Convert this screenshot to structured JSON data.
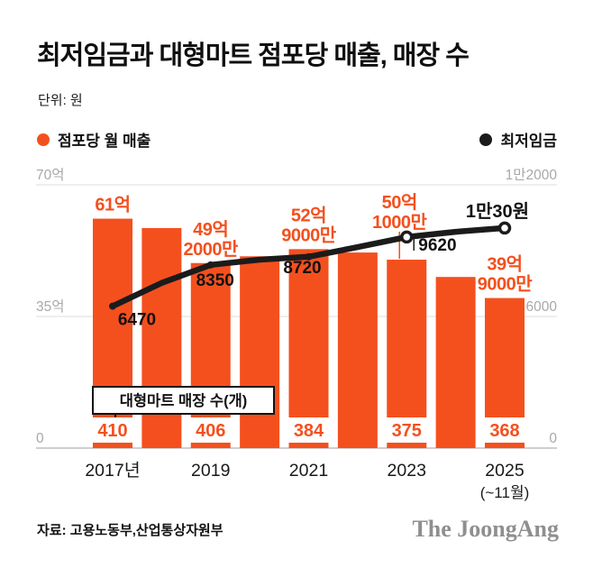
{
  "title": "최저임금과 대형마트 점포당 매출, 매장 수",
  "unit_label": "단위: 원",
  "legend": {
    "sales": {
      "label": "점포당 월 매출",
      "color": "#f4501e"
    },
    "min_wage": {
      "label": "최저임금",
      "color": "#1b1b1b"
    }
  },
  "axes": {
    "left_ticks": [
      "70억",
      "35억",
      "0"
    ],
    "right_ticks": [
      "1만2000",
      "6000",
      "0"
    ]
  },
  "store_count_box_label": "대형마트 매장 수(개)",
  "source": "자료: 고용노동부,산업통상자원부",
  "logo": "The JoongAng",
  "colors": {
    "bar": "#f4501e",
    "line": "#1b1b1b",
    "grid": "#dcdcdc",
    "baseline": "#bfbfbf",
    "axis_text": "#a8a8a8",
    "text": "#111111"
  },
  "chart_data": {
    "type": "bar+line",
    "x": [
      2017,
      2018,
      2019,
      2020,
      2021,
      2022,
      2023,
      2024,
      2025
    ],
    "x_tick_labels": [
      {
        "year": 2017,
        "label": "2017년"
      },
      {
        "year": 2019,
        "label": "2019"
      },
      {
        "year": 2021,
        "label": "2021"
      },
      {
        "year": 2023,
        "label": "2023"
      },
      {
        "year": 2025,
        "label": "2025"
      }
    ],
    "x_sub_label": {
      "year": 2025,
      "label": "(~11월)"
    },
    "left_axis": {
      "max": 70,
      "unit": "억원"
    },
    "right_axis": {
      "max": 12000,
      "unit": "원"
    },
    "series": [
      {
        "name": "점포당 월 매출",
        "type": "bar",
        "axis": "left",
        "unit": "억원",
        "values": [
          61.0,
          58.5,
          49.2,
          51.0,
          52.9,
          52.0,
          50.1,
          45.5,
          39.9
        ],
        "labels": [
          {
            "year": 2017,
            "lines": [
              "61억"
            ]
          },
          {
            "year": 2019,
            "lines": [
              "49억",
              "2000만"
            ]
          },
          {
            "year": 2021,
            "lines": [
              "52억",
              "9000만"
            ]
          },
          {
            "year": 2023,
            "lines": [
              "50억",
              "1000만"
            ]
          },
          {
            "year": 2025,
            "lines": [
              "39억",
              "9000만"
            ]
          }
        ]
      },
      {
        "name": "최저임금",
        "type": "line",
        "axis": "right",
        "unit": "원",
        "values": [
          6470,
          7530,
          8350,
          8590,
          8720,
          9160,
          9620,
          9860,
          10030
        ],
        "labels": [
          {
            "year": 2017,
            "text": "6470"
          },
          {
            "year": 2019,
            "text": "8350"
          },
          {
            "year": 2021,
            "text": "8720"
          },
          {
            "year": 2023,
            "text": "9620"
          },
          {
            "year": 2025,
            "text": "1만30원"
          }
        ]
      }
    ],
    "store_counts": [
      {
        "year": 2017,
        "count": "410"
      },
      {
        "year": 2019,
        "count": "406"
      },
      {
        "year": 2021,
        "count": "384"
      },
      {
        "year": 2023,
        "count": "375"
      },
      {
        "year": 2025,
        "count": "368"
      }
    ]
  }
}
